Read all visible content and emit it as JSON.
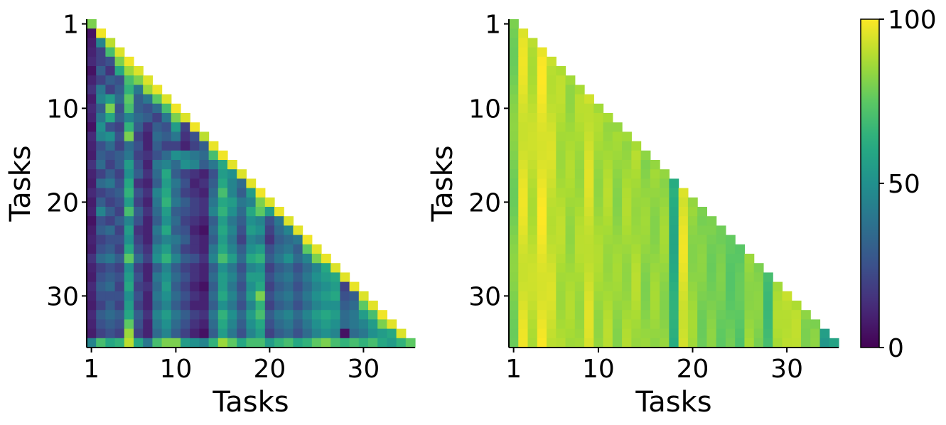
{
  "chart_data": [
    {
      "type": "heatmap",
      "title": "",
      "xlabel": "Tasks",
      "ylabel": "Tasks",
      "n_tasks": 35,
      "x_ticks": [
        1,
        10,
        20,
        30
      ],
      "y_ticks": [
        1,
        10,
        20,
        30
      ],
      "vmin": 0,
      "vmax": 100,
      "colormap": "viridis",
      "shape": "lower-triangular",
      "rows": [
        [
          80
        ],
        [
          5,
          98
        ],
        [
          8,
          45,
          90
        ],
        [
          10,
          20,
          70,
          95
        ],
        [
          12,
          20,
          25,
          80,
          98
        ],
        [
          5,
          30,
          15,
          60,
          85,
          95
        ],
        [
          10,
          20,
          30,
          25,
          70,
          80,
          95
        ],
        [
          15,
          40,
          20,
          30,
          65,
          40,
          85,
          97
        ],
        [
          8,
          45,
          55,
          35,
          75,
          30,
          40,
          75,
          95
        ],
        [
          12,
          30,
          80,
          25,
          70,
          30,
          25,
          35,
          70,
          98
        ],
        [
          10,
          40,
          60,
          30,
          45,
          35,
          30,
          20,
          40,
          80,
          95
        ],
        [
          5,
          50,
          25,
          20,
          65,
          30,
          15,
          30,
          25,
          55,
          20,
          98
        ],
        [
          12,
          45,
          50,
          25,
          80,
          20,
          10,
          35,
          30,
          40,
          15,
          25,
          90
        ],
        [
          10,
          25,
          35,
          20,
          35,
          25,
          10,
          30,
          20,
          20,
          10,
          20,
          30,
          97
        ],
        [
          8,
          30,
          25,
          30,
          40,
          20,
          15,
          25,
          35,
          50,
          45,
          40,
          35,
          70,
          98
        ],
        [
          15,
          35,
          20,
          30,
          55,
          25,
          10,
          40,
          45,
          35,
          50,
          45,
          30,
          40,
          60,
          96
        ],
        [
          10,
          20,
          30,
          20,
          50,
          30,
          15,
          35,
          60,
          30,
          20,
          15,
          10,
          25,
          55,
          50,
          95
        ],
        [
          8,
          35,
          40,
          25,
          60,
          15,
          10,
          30,
          55,
          40,
          25,
          10,
          15,
          30,
          60,
          45,
          35,
          96
        ],
        [
          12,
          20,
          25,
          30,
          65,
          25,
          15,
          45,
          60,
          35,
          20,
          15,
          10,
          35,
          70,
          45,
          30,
          55,
          98
        ],
        [
          8,
          30,
          20,
          25,
          55,
          20,
          10,
          40,
          65,
          40,
          30,
          20,
          15,
          40,
          60,
          55,
          40,
          45,
          80,
          95
        ],
        [
          10,
          45,
          30,
          20,
          70,
          30,
          15,
          35,
          55,
          30,
          25,
          20,
          15,
          45,
          65,
          50,
          35,
          60,
          75,
          55,
          97
        ],
        [
          5,
          25,
          20,
          30,
          45,
          25,
          10,
          30,
          50,
          35,
          20,
          15,
          10,
          30,
          55,
          40,
          30,
          50,
          45,
          25,
          40,
          95
        ],
        [
          8,
          30,
          35,
          20,
          55,
          15,
          10,
          40,
          60,
          30,
          25,
          10,
          5,
          35,
          60,
          45,
          25,
          55,
          50,
          20,
          35,
          45,
          96
        ],
        [
          10,
          20,
          25,
          25,
          50,
          20,
          10,
          35,
          45,
          40,
          30,
          15,
          10,
          30,
          55,
          40,
          20,
          45,
          40,
          15,
          30,
          35,
          40,
          98
        ],
        [
          8,
          25,
          30,
          20,
          60,
          25,
          15,
          45,
          55,
          35,
          20,
          15,
          10,
          40,
          60,
          45,
          30,
          50,
          55,
          25,
          35,
          40,
          30,
          75,
          96
        ],
        [
          15,
          35,
          40,
          30,
          75,
          35,
          20,
          50,
          65,
          45,
          30,
          25,
          15,
          45,
          70,
          55,
          35,
          60,
          65,
          30,
          40,
          50,
          35,
          45,
          80,
          97
        ],
        [
          10,
          20,
          25,
          20,
          50,
          20,
          10,
          30,
          45,
          30,
          20,
          15,
          10,
          30,
          50,
          40,
          25,
          45,
          50,
          20,
          30,
          35,
          25,
          35,
          45,
          60,
          95
        ],
        [
          8,
          25,
          30,
          25,
          55,
          25,
          10,
          40,
          50,
          35,
          25,
          15,
          10,
          35,
          55,
          45,
          30,
          55,
          55,
          25,
          35,
          40,
          30,
          40,
          50,
          55,
          60,
          96
        ],
        [
          12,
          30,
          35,
          20,
          60,
          20,
          15,
          35,
          55,
          30,
          20,
          10,
          5,
          30,
          55,
          40,
          25,
          50,
          60,
          20,
          30,
          35,
          25,
          35,
          45,
          50,
          55,
          20,
          97
        ],
        [
          10,
          25,
          25,
          25,
          50,
          25,
          10,
          40,
          50,
          35,
          25,
          15,
          10,
          35,
          60,
          45,
          30,
          55,
          80,
          25,
          35,
          40,
          30,
          40,
          50,
          55,
          60,
          25,
          30,
          95
        ],
        [
          8,
          20,
          30,
          20,
          55,
          20,
          10,
          35,
          45,
          30,
          20,
          10,
          10,
          30,
          50,
          40,
          25,
          45,
          65,
          20,
          30,
          35,
          25,
          35,
          45,
          50,
          50,
          30,
          35,
          75,
          96
        ],
        [
          12,
          30,
          35,
          30,
          60,
          30,
          15,
          45,
          55,
          40,
          30,
          20,
          15,
          40,
          65,
          50,
          35,
          55,
          70,
          30,
          40,
          45,
          35,
          45,
          55,
          60,
          55,
          35,
          40,
          55,
          70,
          98
        ],
        [
          10,
          25,
          30,
          25,
          75,
          25,
          10,
          40,
          50,
          35,
          25,
          15,
          10,
          35,
          60,
          45,
          30,
          50,
          60,
          25,
          35,
          40,
          30,
          40,
          50,
          55,
          50,
          35,
          40,
          45,
          55,
          80,
          96
        ],
        [
          8,
          20,
          25,
          20,
          85,
          20,
          10,
          35,
          45,
          30,
          20,
          10,
          5,
          30,
          55,
          40,
          25,
          45,
          55,
          20,
          30,
          35,
          25,
          35,
          45,
          50,
          45,
          5,
          35,
          40,
          50,
          55,
          60,
          95
        ],
        [
          45,
          70,
          60,
          65,
          90,
          60,
          40,
          70,
          80,
          80,
          55,
          50,
          45,
          65,
          85,
          75,
          60,
          70,
          70,
          55,
          65,
          70,
          60,
          65,
          75,
          80,
          70,
          65,
          70,
          65,
          70,
          60,
          55,
          65,
          75
        ]
      ]
    },
    {
      "type": "heatmap",
      "title": "",
      "xlabel": "Tasks",
      "ylabel": "Tasks",
      "n_tasks": 35,
      "x_ticks": [
        1,
        10,
        20,
        30
      ],
      "y_ticks": [
        1,
        10,
        20,
        30
      ],
      "vmin": 0,
      "vmax": 100,
      "colormap": "viridis",
      "shape": "lower-triangular",
      "column_values": [
        80,
        95,
        90,
        97,
        92,
        88,
        86,
        87,
        93,
        86,
        87,
        84,
        86,
        87,
        83,
        84,
        84,
        62,
        95,
        84,
        80,
        80,
        78,
        76,
        74,
        85,
        80,
        70,
        86,
        92,
        88,
        83,
        80,
        56,
        58
      ],
      "column_noise": 3
    }
  ],
  "colorbar": {
    "ticks": [
      0,
      50,
      100
    ],
    "tick_labels": [
      "0",
      "50",
      "100"
    ]
  }
}
